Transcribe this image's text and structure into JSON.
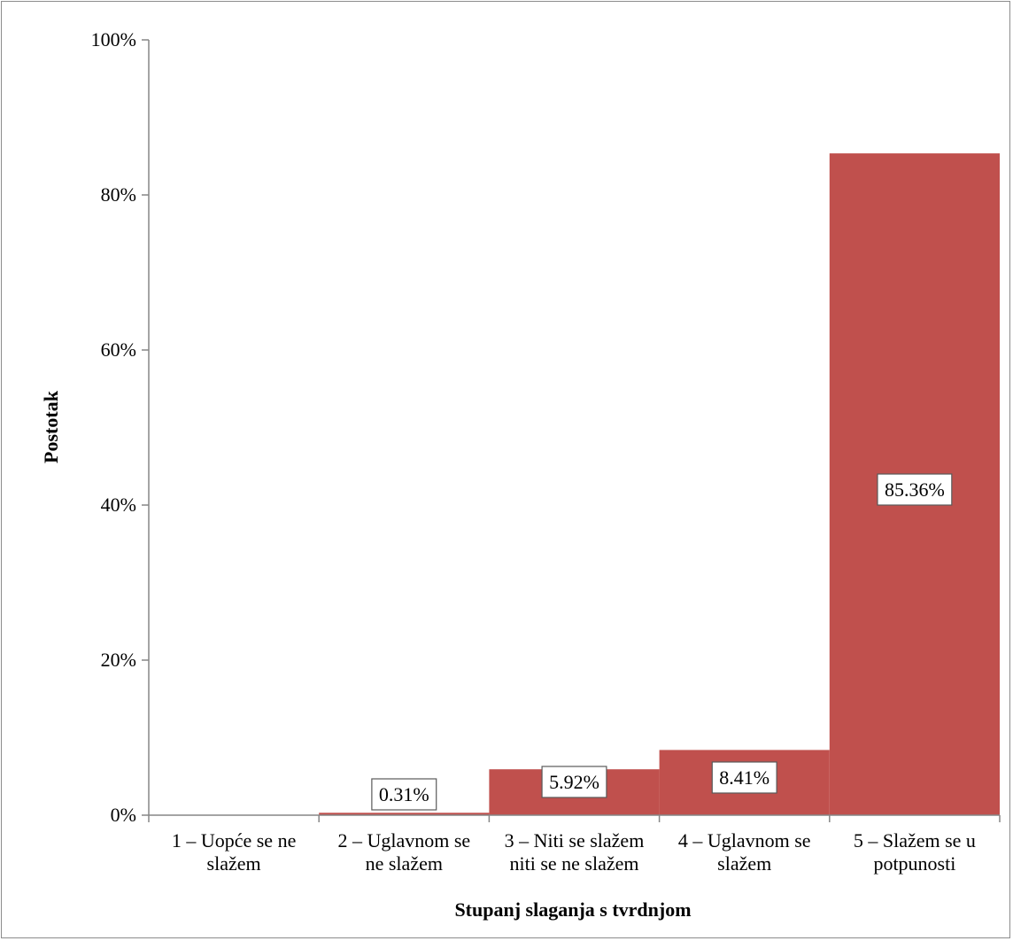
{
  "chart_data": {
    "type": "bar",
    "categories": [
      [
        "1 – Uopće se ne",
        "slažem"
      ],
      [
        "2 – Uglavnom se",
        "ne slažem"
      ],
      [
        "3 – Niti se slažem",
        "niti se ne slažem"
      ],
      [
        "4 – Uglavnom se",
        "slažem"
      ],
      [
        "5 – Slažem se u",
        "potpunosti"
      ]
    ],
    "values": [
      0,
      0.31,
      5.92,
      8.41,
      85.36
    ],
    "data_labels": [
      "",
      "0.31%",
      "5.92%",
      "8.41%",
      "85.36%"
    ],
    "y_ticks": [
      "0%",
      "20%",
      "40%",
      "60%",
      "80%",
      "100%"
    ],
    "ylim": [
      0,
      100
    ],
    "xlabel": "Stupanj slaganja s tvrdnjom",
    "ylabel": "Postotak",
    "title": "",
    "grid": false,
    "legend": "none",
    "bar_color": "#c0504d",
    "axis_color": "#868686"
  }
}
